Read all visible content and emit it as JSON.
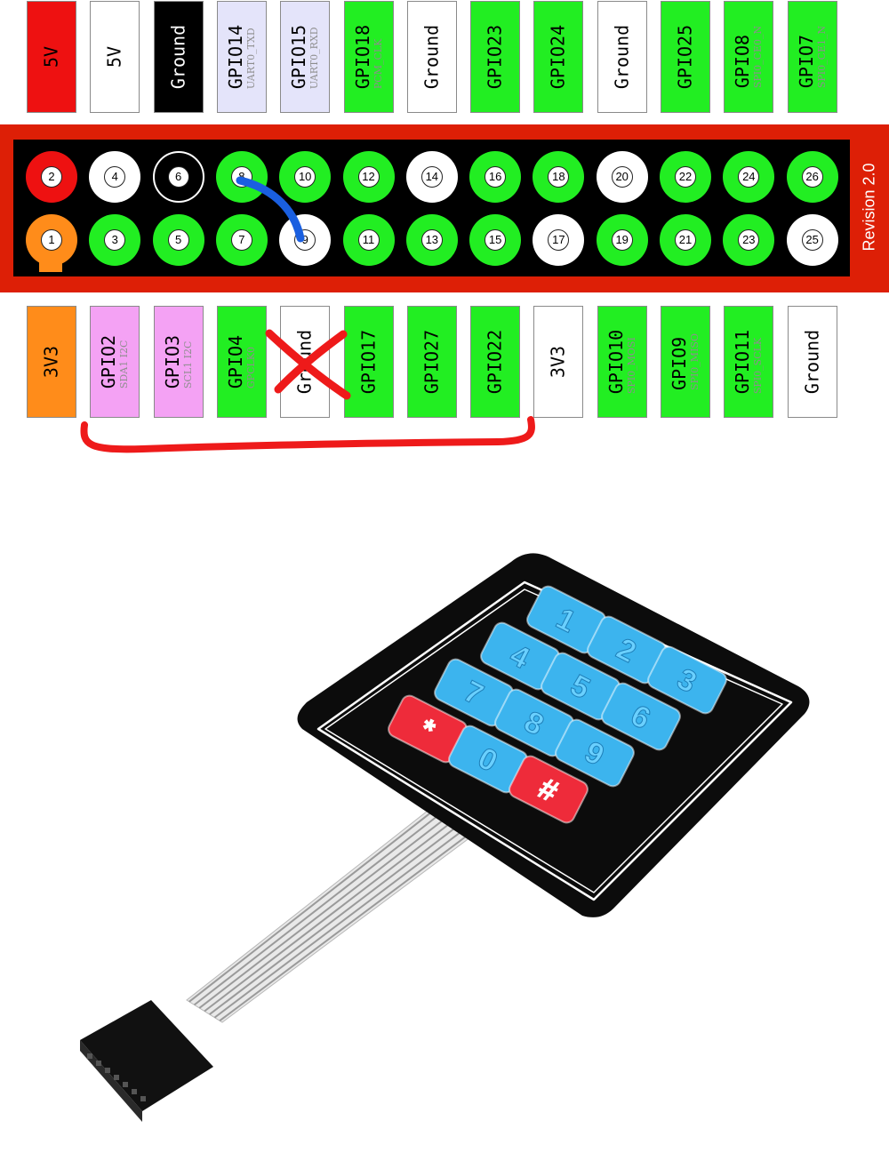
{
  "top_labels": [
    {
      "main": "5V",
      "sub": "",
      "bg": "#ee1111",
      "fg": "#000000"
    },
    {
      "main": "5V",
      "sub": "",
      "bg": "#ffffff",
      "fg": "#000000"
    },
    {
      "main": "Ground",
      "sub": "",
      "bg": "#000000",
      "fg": "#ffffff"
    },
    {
      "main": "GPIO14",
      "sub": "UART0_TXD",
      "bg": "#e4e4fa",
      "fg": "#000000"
    },
    {
      "main": "GPIO15",
      "sub": "UART0_RXD",
      "bg": "#e4e4fa",
      "fg": "#000000"
    },
    {
      "main": "GPIO18",
      "sub": "PCM_CLK",
      "bg": "#22ee22",
      "fg": "#000000"
    },
    {
      "main": "Ground",
      "sub": "",
      "bg": "#ffffff",
      "fg": "#000000"
    },
    {
      "main": "GPIO23",
      "sub": "",
      "bg": "#22ee22",
      "fg": "#000000"
    },
    {
      "main": "GPIO24",
      "sub": "",
      "bg": "#22ee22",
      "fg": "#000000"
    },
    {
      "main": "Ground",
      "sub": "",
      "bg": "#ffffff",
      "fg": "#000000"
    },
    {
      "main": "GPIO25",
      "sub": "",
      "bg": "#22ee22",
      "fg": "#000000"
    },
    {
      "main": "GPIO8",
      "sub": "SPI0_CE0_N",
      "bg": "#22ee22",
      "fg": "#000000"
    },
    {
      "main": "GPIO7",
      "sub": "SPI0_CE1_N",
      "bg": "#22ee22",
      "fg": "#000000"
    }
  ],
  "bottom_labels": [
    {
      "main": "3V3",
      "sub": "",
      "bg": "#ff8c1a",
      "fg": "#000000"
    },
    {
      "main": "GPIO2",
      "sub": "SDA1 I2C",
      "bg": "#f4a2f4",
      "fg": "#000000"
    },
    {
      "main": "GPIO3",
      "sub": "SCL1 I2C",
      "bg": "#f4a2f4",
      "fg": "#000000"
    },
    {
      "main": "GPIO4",
      "sub": "GPCLK0",
      "bg": "#22ee22",
      "fg": "#000000"
    },
    {
      "main": "Ground",
      "sub": "",
      "bg": "#ffffff",
      "fg": "#000000"
    },
    {
      "main": "GPIO17",
      "sub": "",
      "bg": "#22ee22",
      "fg": "#000000"
    },
    {
      "main": "GPIO27",
      "sub": "",
      "bg": "#22ee22",
      "fg": "#000000"
    },
    {
      "main": "GPIO22",
      "sub": "",
      "bg": "#22ee22",
      "fg": "#000000"
    },
    {
      "main": "3V3",
      "sub": "",
      "bg": "#ffffff",
      "fg": "#000000"
    },
    {
      "main": "GPIO10",
      "sub": "SPI0_MOSI",
      "bg": "#22ee22",
      "fg": "#000000"
    },
    {
      "main": "GPIO9",
      "sub": "SPI0_MISO",
      "bg": "#22ee22",
      "fg": "#000000"
    },
    {
      "main": "GPIO11",
      "sub": "SPI0_SCLK",
      "bg": "#22ee22",
      "fg": "#000000"
    },
    {
      "main": "Ground",
      "sub": "",
      "bg": "#ffffff",
      "fg": "#000000"
    }
  ],
  "top_pins": [
    {
      "num": "2",
      "color": "#ee1111"
    },
    {
      "num": "4",
      "color": "#ffffff"
    },
    {
      "num": "6",
      "color": "#000000"
    },
    {
      "num": "8",
      "color": "#22ee22"
    },
    {
      "num": "10",
      "color": "#22ee22"
    },
    {
      "num": "12",
      "color": "#22ee22"
    },
    {
      "num": "14",
      "color": "#ffffff"
    },
    {
      "num": "16",
      "color": "#22ee22"
    },
    {
      "num": "18",
      "color": "#22ee22"
    },
    {
      "num": "20",
      "color": "#ffffff"
    },
    {
      "num": "22",
      "color": "#22ee22"
    },
    {
      "num": "24",
      "color": "#22ee22"
    },
    {
      "num": "26",
      "color": "#22ee22"
    }
  ],
  "bottom_pins": [
    {
      "num": "1",
      "color": "#ff8c1a"
    },
    {
      "num": "3",
      "color": "#22ee22"
    },
    {
      "num": "5",
      "color": "#22ee22"
    },
    {
      "num": "7",
      "color": "#22ee22"
    },
    {
      "num": "9",
      "color": "#ffffff"
    },
    {
      "num": "11",
      "color": "#22ee22"
    },
    {
      "num": "13",
      "color": "#22ee22"
    },
    {
      "num": "15",
      "color": "#22ee22"
    },
    {
      "num": "17",
      "color": "#ffffff"
    },
    {
      "num": "19",
      "color": "#22ee22"
    },
    {
      "num": "21",
      "color": "#22ee22"
    },
    {
      "num": "23",
      "color": "#22ee22"
    },
    {
      "num": "25",
      "color": "#ffffff"
    }
  ],
  "revision": "Revision 2.0",
  "keypad": {
    "keys": [
      "1",
      "2",
      "3",
      "4",
      "5",
      "6",
      "7",
      "8",
      "9",
      "*",
      "0",
      "#"
    ],
    "blue_key_color": "#3cb4ee",
    "red_key_color": "#ee2b3a",
    "body_color": "#0c0c0c"
  },
  "annotations": {
    "wire_color": "#1a5fe0",
    "marker_color": "#ee1a1a"
  }
}
